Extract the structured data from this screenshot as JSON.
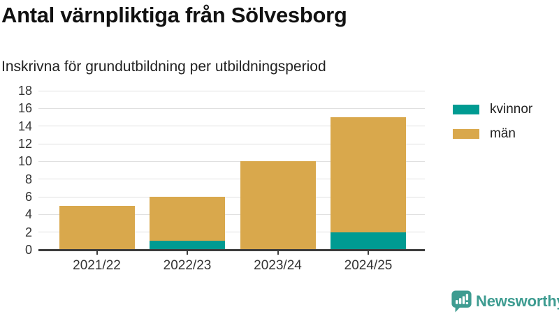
{
  "header": {
    "title": "Antal värnpliktiga från Sölvesborg",
    "subtitle": "Inskrivna för grundutbildning per utbildningsperiod"
  },
  "chart_data": {
    "type": "bar",
    "stacked": true,
    "title": "Antal värnpliktiga från Sölvesborg",
    "subtitle": "Inskrivna för grundutbildning per utbildningsperiod",
    "categories": [
      "2021/22",
      "2022/23",
      "2023/24",
      "2024/25"
    ],
    "series": [
      {
        "name": "kvinnor",
        "color": "#009b92",
        "values": [
          0,
          1,
          0,
          2
        ]
      },
      {
        "name": "män",
        "color": "#d9a84c",
        "values": [
          5,
          5,
          10,
          13
        ]
      }
    ],
    "totals": [
      5,
      6,
      10,
      15
    ],
    "xlabel": "",
    "ylabel": "",
    "ylim": [
      0,
      18
    ],
    "yticks": [
      0,
      2,
      4,
      6,
      8,
      10,
      12,
      14,
      16,
      18
    ],
    "grid": true,
    "legend_position": "right"
  },
  "colors": {
    "kvinnor": "#009b92",
    "man": "#d9a84c",
    "gridline": "#e0e0e0",
    "axis": "#3c3c3c",
    "text": "#333333",
    "brand_teal": "#3e9c91"
  },
  "branding": {
    "logo_text": "Newsworthy",
    "logo_icon": "bar-chart-speech-bubble-icon"
  }
}
